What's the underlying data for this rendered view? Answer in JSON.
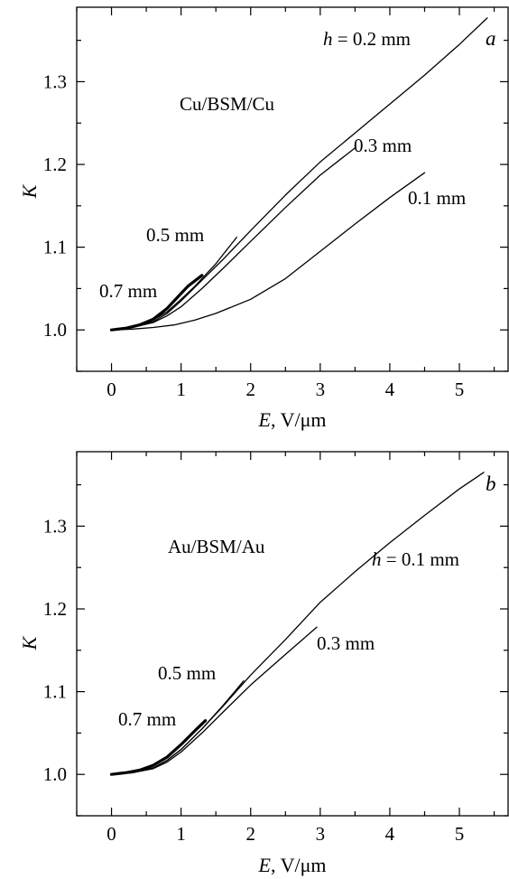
{
  "chart_data": [
    {
      "type": "line",
      "panel_letter": "a",
      "material": "Cu/BSM/Cu",
      "xlabel_var": "E",
      "xlabel_unit": ", V/μm",
      "ylabel": "K",
      "xlim": [
        -0.5,
        5.7
      ],
      "ylim": [
        0.95,
        1.39
      ],
      "x_ticks": [
        0,
        1,
        2,
        3,
        4,
        5
      ],
      "y_ticks": [
        1.0,
        1.1,
        1.2,
        1.3
      ],
      "y_tick_labels": [
        "1.0",
        "1.1",
        "1.2",
        "1.3"
      ],
      "grid": false,
      "series": [
        {
          "name": "0.1 mm",
          "bold": false,
          "x": [
            0,
            0.3,
            0.6,
            0.9,
            1.2,
            1.5,
            2.0,
            2.5,
            3.0,
            3.5,
            4.0,
            4.5
          ],
          "y": [
            1.0,
            1.001,
            1.003,
            1.006,
            1.012,
            1.02,
            1.037,
            1.062,
            1.095,
            1.128,
            1.16,
            1.19
          ]
        },
        {
          "name": "0.2 mm",
          "label_prefix": "h",
          "label_value": " = 0.2 mm",
          "bold": false,
          "x": [
            0,
            0.3,
            0.6,
            0.8,
            1.0,
            1.3,
            1.6,
            2.0,
            2.5,
            3.0,
            3.5,
            4.0,
            4.5,
            5.0,
            5.4
          ],
          "y": [
            1.0,
            1.003,
            1.01,
            1.02,
            1.035,
            1.06,
            1.085,
            1.12,
            1.163,
            1.203,
            1.238,
            1.273,
            1.308,
            1.345,
            1.377
          ]
        },
        {
          "name": "0.3 mm",
          "bold": false,
          "x": [
            0,
            0.3,
            0.6,
            0.8,
            1.0,
            1.3,
            1.6,
            2.0,
            2.5,
            3.0,
            3.5
          ],
          "y": [
            1.0,
            1.003,
            1.009,
            1.017,
            1.028,
            1.05,
            1.074,
            1.107,
            1.148,
            1.187,
            1.22
          ]
        },
        {
          "name": "0.5 mm",
          "bold": false,
          "x": [
            0,
            0.3,
            0.6,
            0.8,
            1.0,
            1.2,
            1.5,
            1.8
          ],
          "y": [
            1.0,
            1.004,
            1.012,
            1.022,
            1.037,
            1.053,
            1.08,
            1.112
          ]
        },
        {
          "name": "0.7 mm",
          "bold": true,
          "x": [
            0,
            0.2,
            0.4,
            0.6,
            0.8,
            1.0,
            1.1,
            1.3
          ],
          "y": [
            1.0,
            1.002,
            1.006,
            1.013,
            1.026,
            1.044,
            1.053,
            1.066
          ]
        }
      ]
    },
    {
      "type": "line",
      "panel_letter": "b",
      "material": "Au/BSM/Au",
      "xlabel_var": "E",
      "xlabel_unit": ", V/μm",
      "ylabel": "K",
      "xlim": [
        -0.5,
        5.7
      ],
      "ylim": [
        0.95,
        1.39
      ],
      "x_ticks": [
        0,
        1,
        2,
        3,
        4,
        5
      ],
      "y_ticks": [
        1.0,
        1.1,
        1.2,
        1.3
      ],
      "y_tick_labels": [
        "1.0",
        "1.1",
        "1.2",
        "1.3"
      ],
      "grid": false,
      "series": [
        {
          "name": "0.1 mm",
          "label_prefix": "h",
          "label_value": " = 0.1 mm",
          "bold": false,
          "x": [
            0,
            0.3,
            0.6,
            0.8,
            1.0,
            1.3,
            1.6,
            2.0,
            2.5,
            3.0,
            3.5,
            4.0,
            4.5,
            5.0,
            5.35
          ],
          "y": [
            1.0,
            1.002,
            1.008,
            1.017,
            1.03,
            1.055,
            1.082,
            1.12,
            1.163,
            1.208,
            1.245,
            1.28,
            1.313,
            1.345,
            1.365
          ]
        },
        {
          "name": "0.3 mm",
          "bold": false,
          "x": [
            0,
            0.3,
            0.6,
            0.8,
            1.0,
            1.3,
            1.6,
            2.0,
            2.5,
            2.95
          ],
          "y": [
            1.0,
            1.002,
            1.007,
            1.015,
            1.027,
            1.05,
            1.075,
            1.108,
            1.145,
            1.178
          ]
        },
        {
          "name": "0.5 mm",
          "bold": false,
          "x": [
            0,
            0.3,
            0.6,
            0.8,
            1.0,
            1.3,
            1.6,
            1.9
          ],
          "y": [
            1.0,
            1.002,
            1.008,
            1.017,
            1.03,
            1.055,
            1.083,
            1.113
          ]
        },
        {
          "name": "0.7 mm",
          "bold": true,
          "x": [
            0,
            0.2,
            0.4,
            0.6,
            0.8,
            1.0,
            1.2,
            1.35
          ],
          "y": [
            1.0,
            1.002,
            1.005,
            1.011,
            1.021,
            1.036,
            1.053,
            1.065
          ]
        }
      ]
    }
  ]
}
